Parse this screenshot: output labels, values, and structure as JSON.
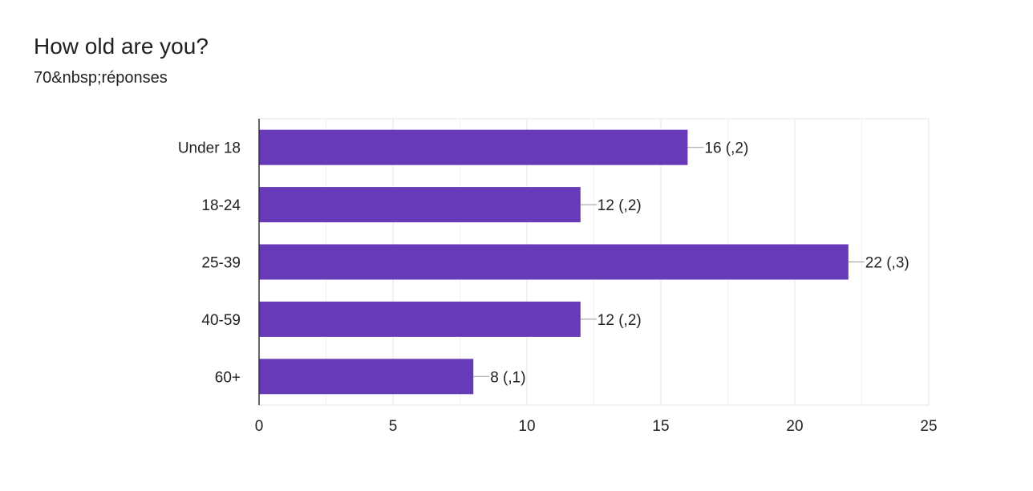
{
  "form_summary": {
    "question": "How old are you?",
    "responses": "70&nbsp;réponses"
  },
  "colors": {
    "bar": "#673ab7",
    "grid": "#e6e6e6",
    "axis": "#333333",
    "text": "#222222"
  },
  "chart_data": {
    "type": "bar",
    "orientation": "horizontal",
    "categories": [
      "Under 18",
      "18-24",
      "25-39",
      "40-59",
      "60+"
    ],
    "values": [
      16,
      12,
      22,
      12,
      8
    ],
    "data_labels": [
      "16 (,2)",
      "12 (,2)",
      "22 (,3)",
      "12 (,2)",
      "8 (,1)"
    ],
    "x_ticks": [
      0,
      5,
      10,
      15,
      20,
      25
    ],
    "xlim": [
      0,
      25
    ],
    "grid": true,
    "legend": "none"
  }
}
